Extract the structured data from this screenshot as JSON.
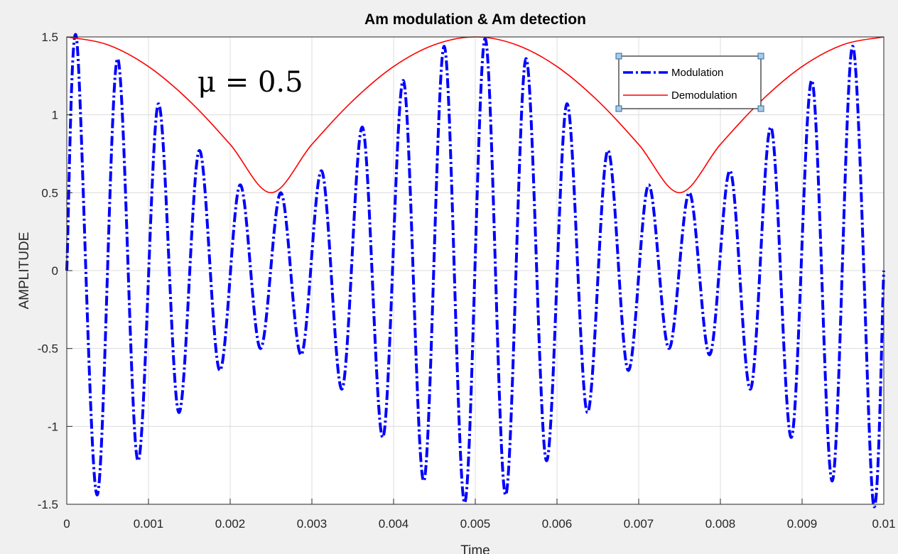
{
  "chart_data": {
    "type": "line",
    "title": "Am modulation & Am detection",
    "xlabel": "Time",
    "ylabel": "AMPLITUDE",
    "xlim": [
      0,
      0.01
    ],
    "ylim": [
      -1.5,
      1.5
    ],
    "grid": true,
    "legend_position": "top-right",
    "xticks": [
      0,
      0.001,
      0.002,
      0.003,
      0.004,
      0.005,
      0.006,
      0.007,
      0.008,
      0.009,
      0.01
    ],
    "xtick_labels": [
      "0",
      "0.001",
      "0.002",
      "0.003",
      "0.004",
      "0.005",
      "0.006",
      "0.007",
      "0.008",
      "0.009",
      "0.01"
    ],
    "yticks": [
      -1.5,
      -1,
      -0.5,
      0,
      0.5,
      1,
      1.5
    ],
    "ytick_labels": [
      "-1.5",
      "-1",
      "-0.5",
      "0",
      "0.5",
      "1",
      "1.5"
    ],
    "annotation": "μ = 0.5",
    "series": [
      {
        "name": "Modulation",
        "color": "#0000ff",
        "line_style": "dash-dot",
        "x": [
          0,
          0.00012,
          0.00037,
          0.00062,
          0.00087,
          0.00112,
          0.00137,
          0.00162,
          0.00187,
          0.00212,
          0.00237,
          0.00262,
          0.00287,
          0.00312,
          0.00337,
          0.00362,
          0.00387,
          0.00412,
          0.00437,
          0.00462,
          0.00487,
          0.00512,
          0.00537,
          0.00562,
          0.00587,
          0.00612,
          0.00637,
          0.00662,
          0.00687,
          0.00712,
          0.00737,
          0.00762,
          0.00787,
          0.00812,
          0.00837,
          0.00862,
          0.00887,
          0.00912,
          0.00937,
          0.00962,
          0.00987,
          0.01
        ],
        "y": [
          0,
          1.49,
          -1.44,
          1.36,
          -1.22,
          1.07,
          -0.91,
          0.77,
          -0.64,
          0.55,
          -0.5,
          0.5,
          -0.54,
          0.64,
          -0.76,
          0.92,
          -1.07,
          1.22,
          -1.35,
          1.44,
          -1.49,
          1.49,
          -1.44,
          1.36,
          -1.22,
          1.07,
          -0.91,
          0.77,
          -0.64,
          0.55,
          -0.5,
          0.5,
          -0.54,
          0.64,
          -0.76,
          0.92,
          -1.07,
          1.22,
          -1.35,
          1.44,
          -1.49,
          0
        ]
      },
      {
        "name": "Demodulation",
        "color": "#ff0000",
        "line_style": "solid",
        "x": [
          0,
          0.0005,
          0.001,
          0.0015,
          0.002,
          0.0025,
          0.003,
          0.0035,
          0.004,
          0.0045,
          0.005,
          0.0055,
          0.006,
          0.0065,
          0.007,
          0.0075,
          0.008,
          0.0085,
          0.009,
          0.0095,
          0.01
        ],
        "y": [
          1.5,
          1.45,
          1.31,
          1.09,
          0.81,
          0.5,
          0.81,
          1.09,
          1.31,
          1.45,
          1.5,
          1.45,
          1.31,
          1.09,
          0.81,
          0.5,
          0.81,
          1.09,
          1.31,
          1.45,
          1.5
        ]
      }
    ]
  }
}
